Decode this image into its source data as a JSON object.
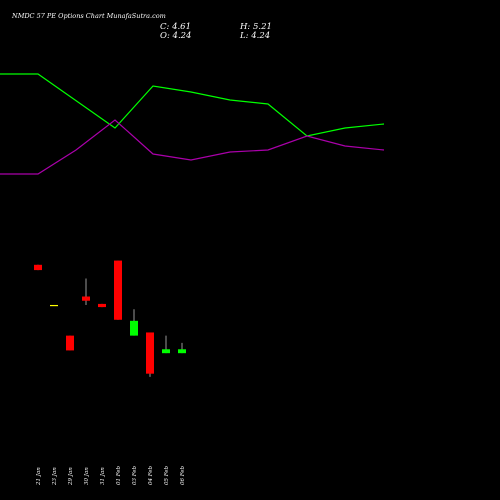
{
  "header": {
    "title": "NMDC 57 PE Options Chart MunafaSutra.com",
    "close": "C: 4.61",
    "high": "H: 5.21",
    "open": "O: 4.24",
    "low": "L: 4.24"
  },
  "chart_data": {
    "type": "candlestick",
    "title": "NMDC 57 PE Options Chart MunafaSutra.com",
    "categories": [
      "21 Jan",
      "23 Jan",
      "29 Jan",
      "30 Jan",
      "31 Jan",
      "01 Feb",
      "03 Feb",
      "04 Feb",
      "05 Feb",
      "06 Feb"
    ],
    "candles": [
      {
        "open": 12.6,
        "high": 12.6,
        "low": 12.1,
        "close": 12.1,
        "color": "#ff0000"
      },
      {
        "open": 8.8,
        "high": 8.8,
        "low": 8.8,
        "close": 8.8,
        "color": "#ffff00"
      },
      {
        "open": 5.9,
        "high": 5.9,
        "low": 4.5,
        "close": 4.5,
        "color": "#ff0000"
      },
      {
        "open": 9.6,
        "high": 11.3,
        "low": 8.8,
        "close": 9.2,
        "color": "#ff0000"
      },
      {
        "open": 8.9,
        "high": 8.9,
        "low": 8.6,
        "close": 8.6,
        "color": "#ff0000"
      },
      {
        "open": 13.0,
        "high": 13.0,
        "low": 7.4,
        "close": 7.4,
        "color": "#ff0000"
      },
      {
        "open": 5.9,
        "high": 8.4,
        "low": 5.9,
        "close": 7.3,
        "color": "#00ff00"
      },
      {
        "open": 6.2,
        "high": 6.2,
        "low": 2.0,
        "close": 2.3,
        "color": "#ff0000"
      },
      {
        "open": 4.24,
        "high": 5.9,
        "low": 4.24,
        "close": 4.61,
        "color": "#00ff00"
      },
      {
        "open": 4.24,
        "high": 5.21,
        "low": 4.24,
        "close": 4.61,
        "color": "#00ff00"
      }
    ],
    "price_range": [
      0,
      14
    ],
    "indicator_range": [
      0,
      100
    ],
    "series": [
      {
        "color": "#00ff00",
        "values": [
          [
            0,
            88
          ],
          [
            38,
            88
          ],
          [
            115,
            61
          ],
          [
            153,
            82
          ],
          [
            191,
            79
          ],
          [
            230,
            75
          ],
          [
            268,
            73
          ],
          [
            307,
            57
          ],
          [
            345,
            61
          ],
          [
            384,
            63
          ]
        ]
      },
      {
        "color": "#aa00aa",
        "values": [
          [
            0,
            38
          ],
          [
            38,
            38
          ],
          [
            76,
            50
          ],
          [
            115,
            65
          ],
          [
            153,
            48
          ],
          [
            191,
            45
          ],
          [
            230,
            49
          ],
          [
            268,
            50
          ],
          [
            307,
            57
          ],
          [
            345,
            52
          ],
          [
            384,
            50
          ]
        ]
      }
    ]
  }
}
